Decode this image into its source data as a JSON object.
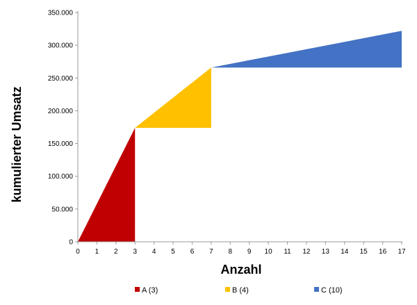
{
  "chart_data": {
    "type": "area",
    "xlabel": "Anzahl",
    "ylabel": "kumulierter Umsatz",
    "xlim": [
      0,
      17
    ],
    "ylim": [
      0,
      350000
    ],
    "x_ticks": [
      "0",
      "1",
      "2",
      "3",
      "4",
      "5",
      "6",
      "7",
      "8",
      "9",
      "10",
      "11",
      "12",
      "13",
      "14",
      "15",
      "16",
      "17"
    ],
    "y_ticks": [
      "0",
      "50.000",
      "100.000",
      "150.000",
      "200.000",
      "250.000",
      "300.000",
      "350.000"
    ],
    "y_tick_values": [
      0,
      50000,
      100000,
      150000,
      200000,
      250000,
      300000,
      350000
    ],
    "grid": false,
    "legend_position": "bottom",
    "series": [
      {
        "name": "A (3)",
        "color": "#c00000",
        "x": [
          0,
          3
        ],
        "y": [
          0,
          174000
        ]
      },
      {
        "name": "B (4)",
        "color": "#ffc000",
        "x": [
          3,
          7
        ],
        "y": [
          174000,
          266000
        ]
      },
      {
        "name": "C (10)",
        "color": "#4472c4",
        "x": [
          7,
          17
        ],
        "y": [
          266000,
          322000
        ]
      }
    ]
  }
}
